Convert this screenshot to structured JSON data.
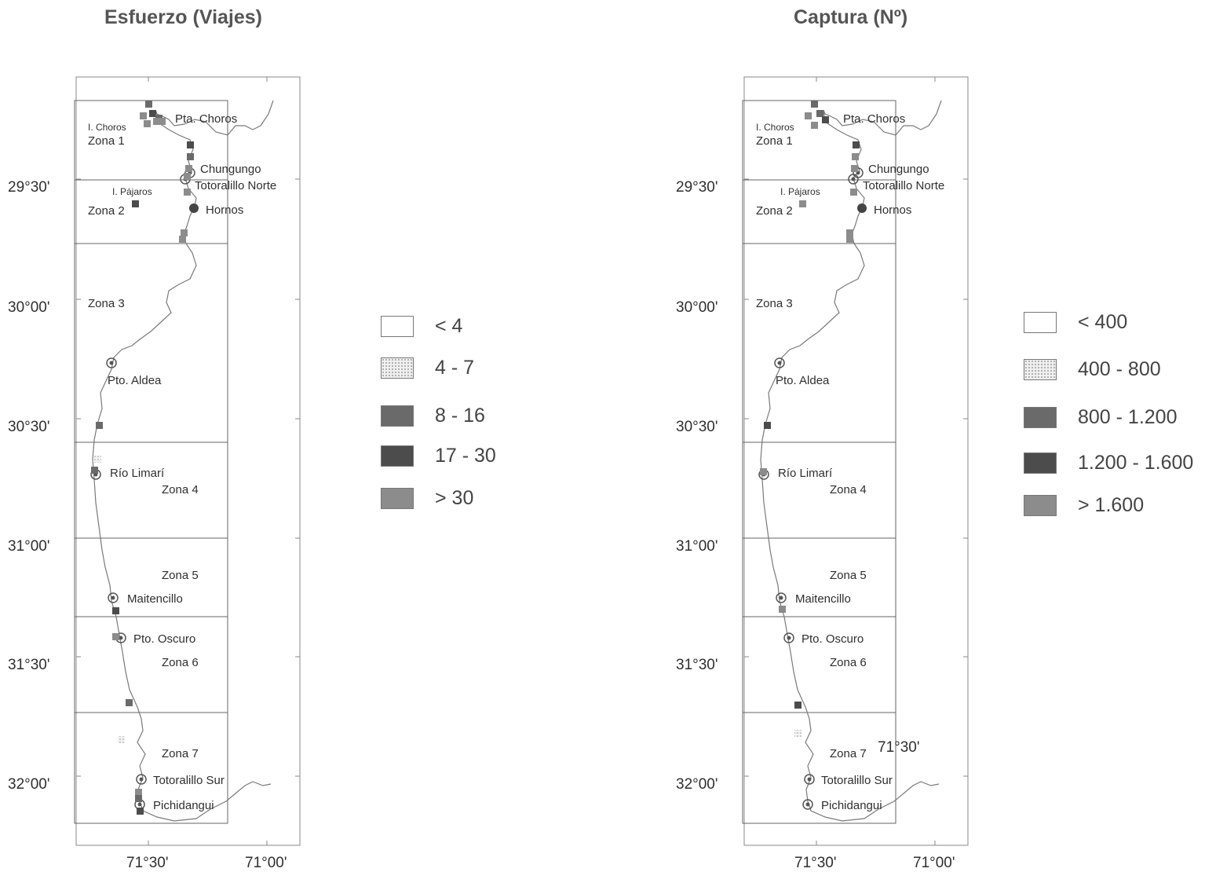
{
  "colors": {
    "light": "#ffffff",
    "dotted": "#e2e2e2",
    "mid": "#6a6a6a",
    "dark": "#4c4c4c",
    "grey": "#8c8c8c",
    "coast": "#7a7a7a"
  },
  "lat_labels": [
    "29°30'",
    "30°00'",
    "30°30'",
    "31°00'",
    "31°30'",
    "32°00'"
  ],
  "lon_labels": [
    "71°30'",
    "71°00'"
  ],
  "zones": [
    "Zona 1",
    "Zona 2",
    "Zona 3",
    "Zona 4",
    "Zona 5",
    "Zona 6",
    "Zona 7"
  ],
  "places": {
    "i_choros": "I. Choros",
    "pta_choros": "Pta. Choros",
    "chungungo": "Chungungo",
    "i_pajaros": "I. Pájaros",
    "totoralillo_norte": "Totoralillo Norte",
    "hornos": "Hornos",
    "pto_aldea": "Pto. Aldea",
    "rio_limari": "Río Limarí",
    "maitencillo": "Maitencillo",
    "pto_oscuro": "Pto. Oscuro",
    "totoralillo_sur": "Totoralillo Sur",
    "pichidangui": "Pichidangui"
  },
  "maps": [
    {
      "title": "Esfuerzo (Viajes)",
      "legend": [
        {
          "label": "< 4",
          "color": "light"
        },
        {
          "label": "4 - 7",
          "color": "dotted"
        },
        {
          "label": "8 - 16",
          "color": "mid"
        },
        {
          "label": "17 - 30",
          "color": "dark"
        },
        {
          "label": "> 30",
          "color": "grey"
        }
      ]
    },
    {
      "title": "Captura (Nº)",
      "legend": [
        {
          "label": "< 400",
          "color": "light"
        },
        {
          "label": "400 -  800",
          "color": "dotted"
        },
        {
          "label": "800 - 1.200",
          "color": "mid"
        },
        {
          "label": "1.200 - 1.600",
          "color": "dark"
        },
        {
          "label": "> 1.600",
          "color": "grey"
        }
      ],
      "extra_label": "71°30'"
    }
  ]
}
